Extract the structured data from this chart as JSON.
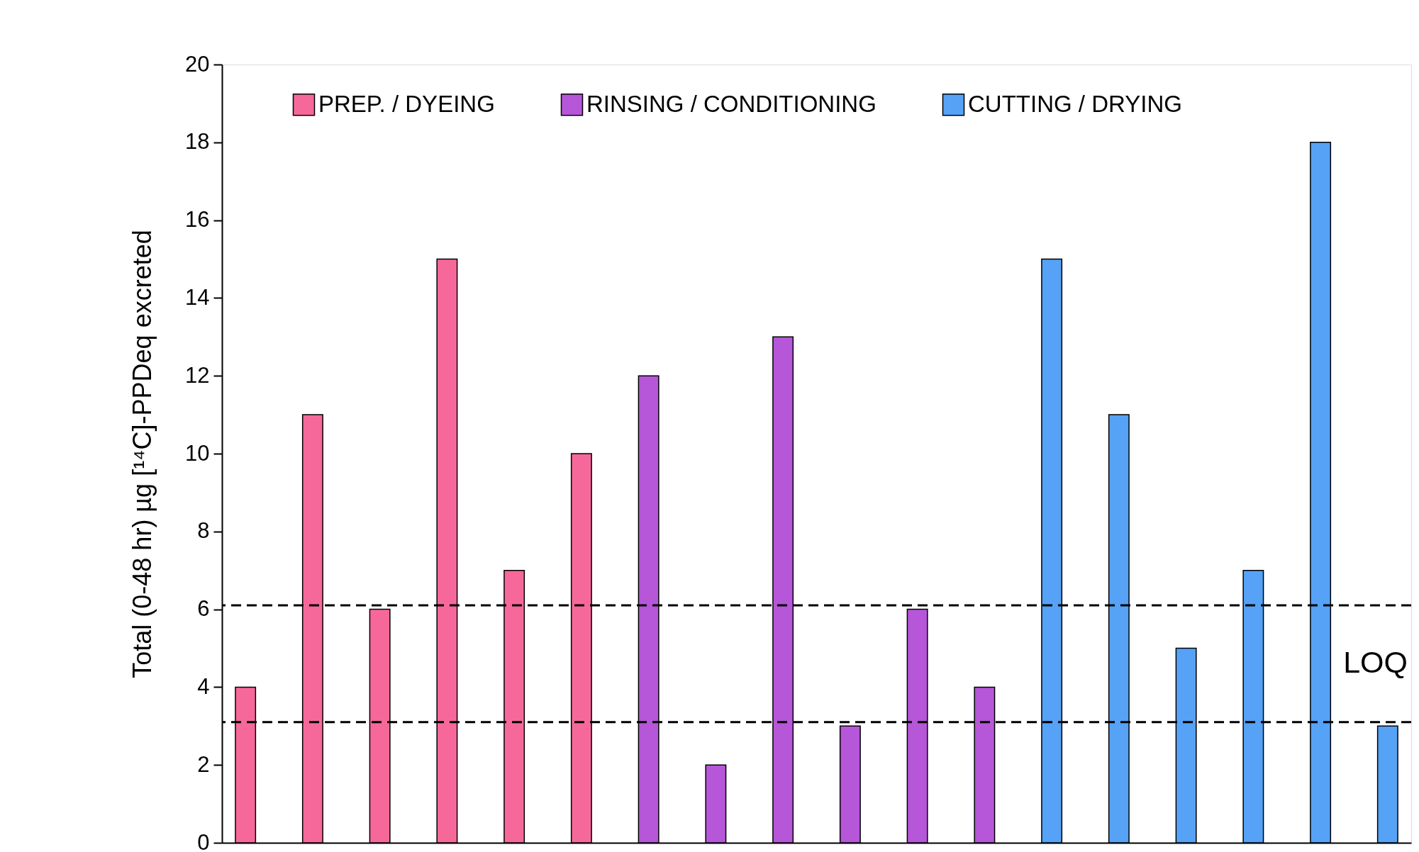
{
  "chart_data": {
    "type": "bar",
    "ylabel": "Total (0-48 hr) µg [¹⁴C]-PPDeq excreted",
    "categories": [
      null,
      null,
      null,
      null,
      null,
      null,
      null,
      null,
      null,
      null,
      null,
      null,
      null,
      null,
      null,
      null,
      null,
      null
    ],
    "series": [
      {
        "name": "PREP. / DYEING",
        "color": "#f7689a",
        "values": [
          4,
          11,
          6,
          15,
          7,
          10,
          null,
          null,
          null,
          null,
          null,
          null,
          null,
          null,
          null,
          null,
          null,
          null
        ]
      },
      {
        "name": "RINSING / CONDITIONING",
        "color": "#b656d8",
        "values": [
          null,
          null,
          null,
          null,
          null,
          null,
          12,
          2,
          13,
          3,
          6,
          4,
          null,
          null,
          null,
          null,
          null,
          null
        ]
      },
      {
        "name": "CUTTING / DRYING",
        "color": "#55a2f7",
        "values": [
          null,
          null,
          null,
          null,
          null,
          null,
          null,
          null,
          null,
          null,
          null,
          null,
          15,
          11,
          5,
          7,
          18,
          3
        ]
      }
    ],
    "ylim": [
      0,
      20
    ],
    "yticks": [
      0,
      2,
      4,
      6,
      8,
      10,
      12,
      14,
      16,
      18,
      20
    ],
    "ref_lines": [
      {
        "axis": "y",
        "value": 6.1,
        "line_style": "dashed",
        "color": "#000000"
      },
      {
        "axis": "y",
        "value": 3.1,
        "line_style": "dashed",
        "color": "#000000"
      }
    ],
    "annotations": [
      "LOQ"
    ],
    "legend": "top",
    "grid": false,
    "tick_labels": "y"
  }
}
